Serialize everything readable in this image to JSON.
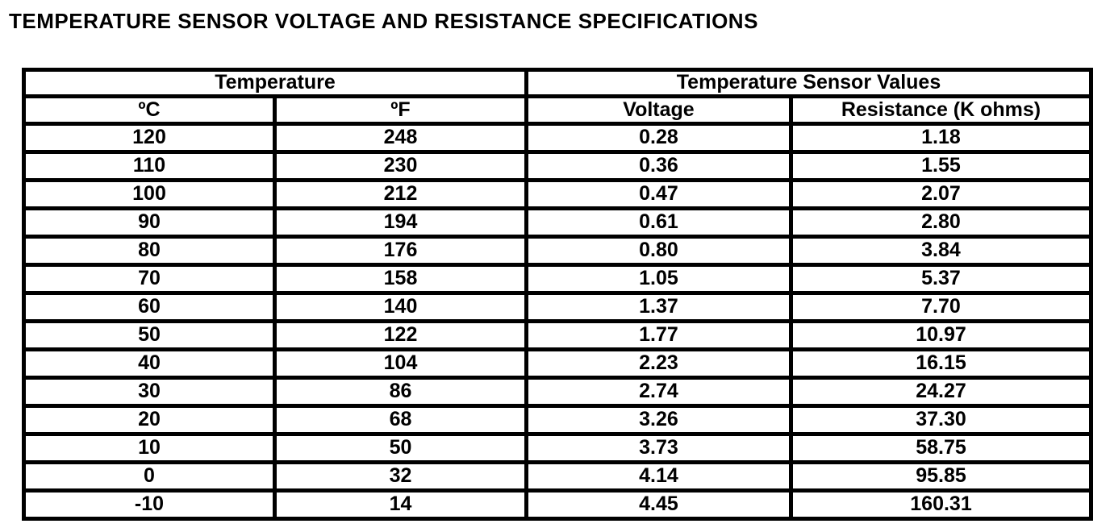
{
  "page": {
    "title": "TEMPERATURE SENSOR VOLTAGE AND RESISTANCE SPECIFICATIONS"
  },
  "table": {
    "group_headers": [
      {
        "label": "Temperature",
        "colspan": 2
      },
      {
        "label": "Temperature Sensor Values",
        "colspan": 2
      }
    ],
    "column_headers": [
      "ºC",
      "ºF",
      "Voltage",
      "Resistance (K ohms)"
    ],
    "rows": [
      [
        "120",
        "248",
        "0.28",
        "1.18"
      ],
      [
        "110",
        "230",
        "0.36",
        "1.55"
      ],
      [
        "100",
        "212",
        "0.47",
        "2.07"
      ],
      [
        "90",
        "194",
        "0.61",
        "2.80"
      ],
      [
        "80",
        "176",
        "0.80",
        "3.84"
      ],
      [
        "70",
        "158",
        "1.05",
        "5.37"
      ],
      [
        "60",
        "140",
        "1.37",
        "7.70"
      ],
      [
        "50",
        "122",
        "1.77",
        "10.97"
      ],
      [
        "40",
        "104",
        "2.23",
        "16.15"
      ],
      [
        "30",
        "86",
        "2.74",
        "24.27"
      ],
      [
        "20",
        "68",
        "3.26",
        "37.30"
      ],
      [
        "10",
        "50",
        "3.73",
        "58.75"
      ],
      [
        "0",
        "32",
        "4.14",
        "95.85"
      ],
      [
        "-10",
        "14",
        "4.45",
        "160.31"
      ]
    ]
  },
  "colors": {
    "border": "#000000",
    "text": "#000000",
    "background": "#ffffff"
  }
}
